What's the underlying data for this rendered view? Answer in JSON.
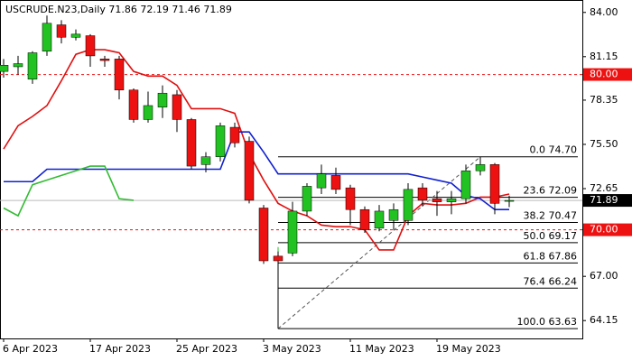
{
  "chart_data": {
    "type": "candlestick",
    "title": "USCRUDE.N23,Daily  71.86 72.19 71.46 71.89",
    "categories": [
      "6 Apr 2023",
      null,
      null,
      null,
      null,
      null,
      "17 Apr 2023",
      null,
      null,
      null,
      null,
      null,
      "25 Apr 2023",
      null,
      null,
      null,
      null,
      null,
      "3 May 2023",
      null,
      null,
      null,
      null,
      null,
      "11 May 2023",
      null,
      null,
      null,
      null,
      null,
      "19 May 2023",
      null,
      null,
      null,
      null,
      null
    ],
    "open": [
      80.2,
      80.5,
      79.7,
      81.5,
      83.2,
      82.4,
      82.5,
      81.0,
      81.0,
      79.0,
      77.1,
      77.9,
      78.7,
      77.1,
      74.2,
      74.7,
      76.6,
      75.7,
      71.4,
      68.3,
      68.5,
      71.2,
      72.7,
      73.5,
      72.7,
      71.3,
      70.1,
      70.6,
      70.6,
      72.7,
      72.0,
      71.8,
      72.0,
      73.8,
      74.2,
      71.86
    ],
    "high": [
      81.0,
      81.2,
      81.5,
      83.8,
      83.5,
      82.9,
      82.6,
      81.2,
      81.2,
      79.1,
      78.9,
      79.3,
      79.0,
      77.2,
      75.0,
      76.9,
      76.9,
      76.0,
      71.6,
      68.6,
      71.8,
      73.0,
      74.2,
      74.0,
      72.9,
      71.5,
      71.6,
      71.7,
      73.0,
      73.0,
      72.5,
      72.5,
      74.2,
      74.7,
      74.3,
      72.19
    ],
    "low": [
      79.8,
      80.0,
      79.4,
      81.2,
      82.0,
      82.2,
      80.5,
      80.5,
      78.4,
      76.9,
      76.9,
      77.2,
      76.3,
      73.9,
      73.7,
      74.4,
      75.3,
      71.7,
      67.8,
      63.63,
      68.3,
      70.9,
      72.3,
      72.3,
      70.3,
      69.8,
      69.9,
      70.0,
      70.3,
      71.5,
      70.9,
      71.0,
      71.7,
      73.5,
      71.0,
      71.46
    ],
    "close": [
      80.6,
      80.7,
      81.4,
      83.3,
      82.4,
      82.6,
      81.2,
      80.9,
      79.0,
      77.1,
      78.0,
      78.8,
      77.1,
      74.1,
      74.7,
      76.7,
      75.6,
      71.9,
      68.0,
      68.0,
      71.2,
      72.8,
      73.6,
      72.6,
      71.3,
      70.0,
      71.2,
      71.3,
      72.6,
      71.9,
      71.8,
      72.0,
      73.8,
      74.2,
      71.7,
      71.89
    ],
    "up_color": "#22c222",
    "down_color": "#ee1111",
    "lines": [
      {
        "color": "#e01010",
        "values": [
          75.2,
          76.7,
          77.3,
          78.0,
          79.6,
          81.3,
          81.6,
          81.6,
          81.4,
          80.2,
          79.9,
          79.9,
          79.3,
          77.8,
          77.8,
          77.8,
          77.5,
          74.9,
          73.2,
          71.7,
          71.2,
          70.9,
          70.3,
          70.2,
          70.2,
          70.0,
          68.7,
          68.7,
          70.9,
          71.7,
          71.6,
          71.6,
          71.7,
          72.1,
          72.1,
          72.3
        ]
      },
      {
        "color": "#1020d0",
        "values": [
          73.1,
          73.1,
          73.1,
          73.9,
          73.9,
          73.9,
          73.9,
          73.9,
          73.9,
          73.9,
          73.9,
          73.9,
          73.9,
          73.9,
          73.9,
          73.9,
          76.3,
          76.3,
          75.0,
          73.6,
          73.6,
          73.6,
          73.6,
          73.6,
          73.6,
          73.6,
          73.6,
          73.6,
          73.6,
          73.4,
          73.2,
          73.0,
          72.2,
          72.0,
          71.3,
          71.3
        ]
      },
      {
        "color": "#33bb33",
        "values": [
          71.4,
          70.9,
          72.9,
          73.2,
          73.5,
          73.8,
          74.1,
          74.1,
          72.0,
          71.9,
          null,
          null,
          null,
          null,
          null,
          null,
          null,
          null,
          null,
          null,
          null,
          null,
          null,
          null,
          null,
          null,
          null,
          null,
          null,
          null,
          null,
          null,
          null,
          null,
          null,
          null
        ]
      }
    ],
    "fib_levels": [
      {
        "value": 74.7,
        "label": "0.0 74.70"
      },
      {
        "value": 72.09,
        "label": "23.6 72.09"
      },
      {
        "value": 70.47,
        "label": "38.2 70.47"
      },
      {
        "value": 69.17,
        "label": "50.0 69.17"
      },
      {
        "value": 67.86,
        "label": "61.8 67.86"
      },
      {
        "value": 66.24,
        "label": "76.4 66.24"
      },
      {
        "value": 63.63,
        "label": "100.0 63.63"
      }
    ],
    "hlines": [
      {
        "value": 80,
        "label": "80.00",
        "color": "#ee1111"
      },
      {
        "value": 70,
        "label": "70.00",
        "color": "#ee1111"
      }
    ],
    "last_price": {
      "value": 71.89,
      "label": "71.89",
      "color": "#000000"
    },
    "ylim": [
      63.0,
      84.8
    ],
    "yticks": [
      {
        "value": 84.0,
        "label": "84.00"
      },
      {
        "value": 81.15,
        "label": "81.15"
      },
      {
        "value": 78.35,
        "label": "78.35"
      },
      {
        "value": 75.5,
        "label": "75.50"
      },
      {
        "value": 72.65,
        "label": "72.65"
      },
      {
        "value": 67.0,
        "label": "67.00"
      },
      {
        "value": 64.15,
        "label": "64.15"
      }
    ]
  }
}
